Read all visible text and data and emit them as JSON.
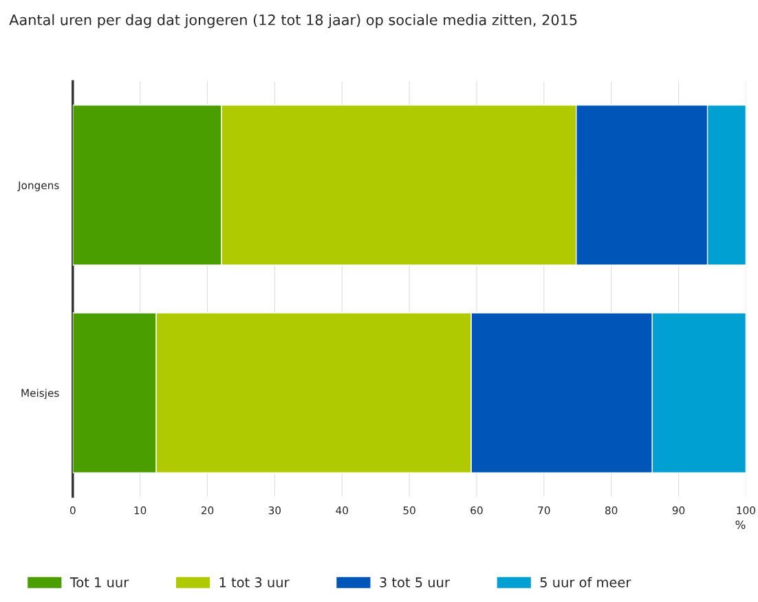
{
  "chart_data": {
    "type": "bar",
    "orientation": "horizontal",
    "stacked": true,
    "title": "Aantal uren per dag dat jongeren (12 tot 18 jaar) op sociale media zitten, 2015",
    "xlabel": "%",
    "categories": [
      "Jongens",
      "Meisjes"
    ],
    "series": [
      {
        "name": "Tot 1 uur",
        "color": "#4a9e00",
        "values": [
          22.1,
          12.4
        ]
      },
      {
        "name": "1 tot 3 uur",
        "color": "#afca00",
        "values": [
          52.7,
          46.8
        ]
      },
      {
        "name": "3 tot 5 uur",
        "color": "#0055b8",
        "values": [
          19.5,
          26.9
        ]
      },
      {
        "name": "5 uur of meer",
        "color": "#00a0d2",
        "values": [
          5.7,
          13.9
        ]
      }
    ],
    "xlim": [
      0,
      100
    ],
    "xticks": [
      0,
      10,
      20,
      30,
      40,
      50,
      60,
      70,
      80,
      90,
      100
    ],
    "grid": "x",
    "legend": "bottom"
  }
}
